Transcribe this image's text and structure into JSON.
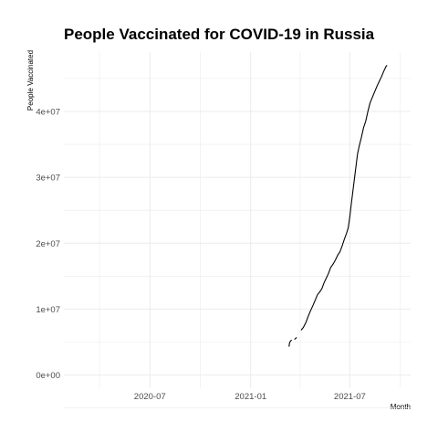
{
  "chart_data": {
    "type": "line",
    "title": "People Vaccinated for COVID-19 in Russia",
    "xlabel": "Month",
    "ylabel": "People Vaccinated",
    "x_axis": {
      "type": "date",
      "range": [
        "2020-01-26",
        "2021-10-20"
      ],
      "ticks": [
        {
          "value": "2020-07-01",
          "label": "2020-07"
        },
        {
          "value": "2021-01-01",
          "label": "2021-01"
        },
        {
          "value": "2021-07-01",
          "label": "2021-07"
        }
      ]
    },
    "y_axis": {
      "range": [
        -2000000,
        49000000
      ],
      "ticks": [
        {
          "value": 0,
          "label": "0e+00"
        },
        {
          "value": 10000000,
          "label": "1e+07"
        },
        {
          "value": 20000000,
          "label": "2e+07"
        },
        {
          "value": 30000000,
          "label": "3e+07"
        },
        {
          "value": 40000000,
          "label": "4e+07"
        }
      ]
    },
    "grid": true,
    "legend": "none",
    "colors": {
      "line": "#000000",
      "grid": "#ebebeb",
      "background": "#ffffff"
    },
    "series": [
      {
        "segments": [
          [
            [
              "2021-03-12",
              4300000
            ],
            [
              "2021-03-13",
              4900000
            ],
            [
              "2021-03-15",
              5200000
            ],
            [
              "2021-03-17",
              5300000
            ]
          ],
          [
            [
              "2021-03-22",
              5400000
            ],
            [
              "2021-03-26",
              5700000
            ]
          ],
          [
            [
              "2021-04-03",
              6800000
            ],
            [
              "2021-04-07",
              7200000
            ],
            [
              "2021-04-12",
              8000000
            ],
            [
              "2021-04-16",
              8900000
            ],
            [
              "2021-04-20",
              9700000
            ],
            [
              "2021-04-25",
              10600000
            ],
            [
              "2021-04-29",
              11400000
            ],
            [
              "2021-05-03",
              12200000
            ],
            [
              "2021-05-07",
              12600000
            ],
            [
              "2021-05-11",
              13100000
            ],
            [
              "2021-05-15",
              14000000
            ],
            [
              "2021-05-19",
              14700000
            ],
            [
              "2021-05-23",
              15400000
            ],
            [
              "2021-05-27",
              16300000
            ],
            [
              "2021-06-01",
              16900000
            ],
            [
              "2021-06-05",
              17500000
            ],
            [
              "2021-06-09",
              18200000
            ],
            [
              "2021-06-13",
              18700000
            ],
            [
              "2021-06-17",
              19600000
            ],
            [
              "2021-06-21",
              20600000
            ],
            [
              "2021-06-25",
              21500000
            ],
            [
              "2021-06-28",
              22300000
            ],
            [
              "2021-07-01",
              24000000
            ],
            [
              "2021-07-03",
              25500000
            ],
            [
              "2021-07-06",
              27500000
            ],
            [
              "2021-07-09",
              29500000
            ],
            [
              "2021-07-12",
              31500000
            ],
            [
              "2021-07-15",
              33500000
            ],
            [
              "2021-07-18",
              34700000
            ],
            [
              "2021-07-22",
              36000000
            ],
            [
              "2021-07-26",
              37500000
            ],
            [
              "2021-07-30",
              38500000
            ],
            [
              "2021-08-03",
              40000000
            ],
            [
              "2021-08-07",
              41300000
            ],
            [
              "2021-08-12",
              42300000
            ],
            [
              "2021-08-16",
              43100000
            ],
            [
              "2021-08-20",
              43900000
            ],
            [
              "2021-08-24",
              44600000
            ],
            [
              "2021-08-28",
              45300000
            ],
            [
              "2021-09-01",
              46100000
            ],
            [
              "2021-09-05",
              46800000
            ],
            [
              "2021-09-07",
              47000000
            ]
          ]
        ]
      }
    ]
  }
}
